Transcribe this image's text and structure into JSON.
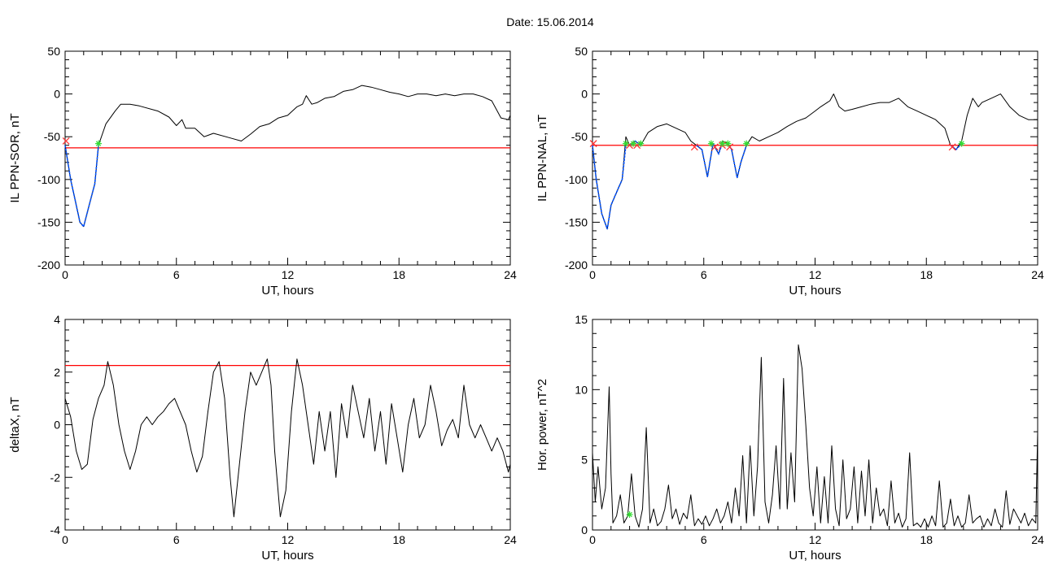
{
  "page": {
    "title": "Date:  15.06.2014"
  },
  "colors": {
    "axis": "#000000",
    "trace": "#000000",
    "threshold": "#ff0000",
    "event": "#0050ff",
    "start_marker": "#33dd33",
    "end_marker": "#ff3333"
  },
  "chart_data": [
    {
      "id": "sor",
      "type": "line",
      "title": "",
      "xlabel": "UT, hours",
      "ylabel": "IL PPN-SOR, nT",
      "xlim": [
        0,
        24
      ],
      "ylim": [
        -200,
        50
      ],
      "xticks": [
        0,
        6,
        12,
        18,
        24
      ],
      "yticks": [
        -200,
        -150,
        -100,
        -50,
        0,
        50
      ],
      "grid": false,
      "threshold": -63,
      "series": [
        {
          "x": [
            0,
            0.3,
            0.6,
            0.8,
            1.0,
            1.3,
            1.6,
            1.8,
            2.2,
            2.7,
            3.0,
            3.5,
            4.0,
            5.0,
            5.6,
            6.0,
            6.3,
            6.5,
            7.0,
            7.5,
            8.0,
            9.0,
            9.5,
            10.0,
            10.5,
            11.0,
            11.5,
            12.0,
            12.5,
            12.8,
            13.0,
            13.3,
            13.6,
            14.0,
            14.5,
            15.0,
            15.5,
            16.0,
            16.5,
            17.0,
            17.5,
            18.0,
            18.5,
            19.0,
            19.5,
            20.0,
            20.5,
            21.0,
            21.5,
            22.0,
            22.5,
            23.0,
            23.5,
            23.9,
            24.0
          ],
          "y": [
            -60,
            -100,
            -130,
            -150,
            -155,
            -130,
            -105,
            -60,
            -35,
            -20,
            -12,
            -12,
            -14,
            -20,
            -27,
            -37,
            -30,
            -40,
            -40,
            -50,
            -46,
            -52,
            -55,
            -47,
            -38,
            -35,
            -28,
            -25,
            -15,
            -12,
            -2,
            -12,
            -10,
            -5,
            -3,
            3,
            5,
            10,
            8,
            5,
            2,
            0,
            -3,
            0,
            0,
            -2,
            0,
            -2,
            0,
            0,
            -3,
            -8,
            -28,
            -30,
            -25
          ]
        }
      ],
      "events": [
        {
          "x": [
            0,
            0.3,
            0.6,
            0.8,
            1.0,
            1.3,
            1.6,
            1.8
          ],
          "y": [
            -60,
            -100,
            -130,
            -150,
            -155,
            -130,
            -105,
            -60
          ]
        }
      ],
      "start_markers": [
        {
          "x": 1.8,
          "y": -58
        }
      ],
      "end_markers": [
        {
          "x": 0.05,
          "y": -55
        }
      ]
    },
    {
      "id": "nal",
      "type": "line",
      "title": "",
      "xlabel": "UT, hours",
      "ylabel": "IL PPN-NAL, nT",
      "xlim": [
        0,
        24
      ],
      "ylim": [
        -200,
        50
      ],
      "xticks": [
        0,
        6,
        12,
        18,
        24
      ],
      "yticks": [
        -200,
        -150,
        -100,
        -50,
        0,
        50
      ],
      "grid": false,
      "threshold": -60,
      "series": [
        {
          "x": [
            0,
            0.2,
            0.5,
            0.8,
            1.0,
            1.3,
            1.6,
            1.8,
            2.0,
            2.3,
            2.6,
            3.0,
            3.5,
            4.0,
            4.5,
            5.0,
            5.3,
            5.6,
            5.9,
            6.2,
            6.5,
            6.8,
            7.0,
            7.3,
            7.5,
            7.8,
            8.0,
            8.3,
            8.6,
            9.0,
            9.5,
            10.0,
            10.5,
            11.0,
            11.5,
            12.0,
            12.3,
            12.8,
            13.0,
            13.3,
            13.6,
            14.0,
            14.5,
            15.0,
            15.5,
            16.0,
            16.5,
            17.0,
            17.5,
            18.0,
            18.5,
            19.0,
            19.3,
            19.6,
            19.9,
            20.2,
            20.5,
            20.8,
            21.0,
            21.5,
            22.0,
            22.5,
            23.0,
            23.5,
            24.0
          ],
          "y": [
            -60,
            -100,
            -140,
            -158,
            -130,
            -115,
            -100,
            -50,
            -60,
            -55,
            -60,
            -45,
            -38,
            -35,
            -40,
            -45,
            -55,
            -60,
            -65,
            -97,
            -58,
            -70,
            -55,
            -58,
            -65,
            -98,
            -80,
            -60,
            -50,
            -55,
            -50,
            -45,
            -38,
            -32,
            -28,
            -20,
            -15,
            -8,
            0,
            -15,
            -20,
            -18,
            -15,
            -12,
            -10,
            -10,
            -5,
            -15,
            -20,
            -25,
            -30,
            -40,
            -60,
            -65,
            -55,
            -25,
            -5,
            -15,
            -10,
            -5,
            0,
            -15,
            -25,
            -30,
            -30
          ]
        }
      ],
      "events": [
        {
          "x": [
            0,
            0.2,
            0.5,
            0.8,
            1.0,
            1.3,
            1.6,
            1.8
          ],
          "y": [
            -60,
            -100,
            -140,
            -158,
            -130,
            -115,
            -100,
            -60
          ]
        },
        {
          "x": [
            2.0,
            2.3,
            2.6
          ],
          "y": [
            -60,
            -55,
            -60
          ]
        },
        {
          "x": [
            5.6,
            5.9,
            6.2,
            6.5
          ],
          "y": [
            -60,
            -65,
            -97,
            -58
          ]
        },
        {
          "x": [
            6.5,
            6.8,
            7.0
          ],
          "y": [
            -58,
            -70,
            -58
          ]
        },
        {
          "x": [
            7.3,
            7.5,
            7.8,
            8.0,
            8.3
          ],
          "y": [
            -58,
            -65,
            -98,
            -80,
            -60
          ]
        },
        {
          "x": [
            19.3,
            19.6,
            19.9
          ],
          "y": [
            -60,
            -65,
            -58
          ]
        }
      ],
      "start_markers": [
        {
          "x": 1.8,
          "y": -58
        },
        {
          "x": 2.2,
          "y": -58
        },
        {
          "x": 2.6,
          "y": -58
        },
        {
          "x": 6.4,
          "y": -58
        },
        {
          "x": 7.0,
          "y": -58
        },
        {
          "x": 7.3,
          "y": -58
        },
        {
          "x": 8.3,
          "y": -58
        },
        {
          "x": 19.9,
          "y": -58
        }
      ],
      "end_markers": [
        {
          "x": 0.05,
          "y": -58
        },
        {
          "x": 2.0,
          "y": -60
        },
        {
          "x": 2.4,
          "y": -60
        },
        {
          "x": 5.5,
          "y": -62
        },
        {
          "x": 6.6,
          "y": -62
        },
        {
          "x": 7.0,
          "y": -60
        },
        {
          "x": 7.4,
          "y": -62
        },
        {
          "x": 19.4,
          "y": -62
        }
      ]
    },
    {
      "id": "deltax",
      "type": "line",
      "title": "",
      "xlabel": "UT, hours",
      "ylabel": "deltaX, nT",
      "xlim": [
        0,
        24
      ],
      "ylim": [
        -4,
        4
      ],
      "xticks": [
        0,
        6,
        12,
        18,
        24
      ],
      "yticks": [
        -4,
        -2,
        0,
        2,
        4
      ],
      "grid": false,
      "threshold": 2.25,
      "series": [
        {
          "x": [
            0,
            0.3,
            0.6,
            0.9,
            1.2,
            1.5,
            1.8,
            2.1,
            2.3,
            2.6,
            2.9,
            3.2,
            3.5,
            3.8,
            4.1,
            4.4,
            4.7,
            5.0,
            5.3,
            5.6,
            5.9,
            6.2,
            6.5,
            6.8,
            7.1,
            7.4,
            7.7,
            8.0,
            8.3,
            8.6,
            8.9,
            9.1,
            9.4,
            9.7,
            10.0,
            10.3,
            10.6,
            10.9,
            11.1,
            11.3,
            11.6,
            11.9,
            12.2,
            12.5,
            12.8,
            13.1,
            13.4,
            13.7,
            14.0,
            14.3,
            14.6,
            14.9,
            15.2,
            15.5,
            15.8,
            16.1,
            16.4,
            16.7,
            17.0,
            17.3,
            17.6,
            17.9,
            18.2,
            18.5,
            18.8,
            19.1,
            19.4,
            19.7,
            20.0,
            20.3,
            20.6,
            20.9,
            21.2,
            21.5,
            21.8,
            22.1,
            22.4,
            22.7,
            23.0,
            23.3,
            23.6,
            23.9,
            24.0
          ],
          "y": [
            1.0,
            0.3,
            -1.0,
            -1.7,
            -1.5,
            0.2,
            1.0,
            1.5,
            2.4,
            1.5,
            0.0,
            -1.0,
            -1.7,
            -1.0,
            0.0,
            0.3,
            0.0,
            0.3,
            0.5,
            0.8,
            1.0,
            0.5,
            0.0,
            -1.0,
            -1.8,
            -1.2,
            0.5,
            2.0,
            2.4,
            1.0,
            -2.0,
            -3.5,
            -1.5,
            0.5,
            2.0,
            1.5,
            2.0,
            2.5,
            1.5,
            -1.0,
            -3.5,
            -2.5,
            0.5,
            2.5,
            1.5,
            0.0,
            -1.5,
            0.5,
            -1.0,
            0.5,
            -2.0,
            0.8,
            -0.5,
            1.5,
            0.5,
            -0.5,
            1.0,
            -1.0,
            0.5,
            -1.5,
            0.8,
            -0.5,
            -1.8,
            0.0,
            1.0,
            -0.5,
            0.0,
            1.5,
            0.5,
            -0.8,
            -0.2,
            0.2,
            -0.5,
            1.5,
            0.0,
            -0.5,
            0.0,
            -0.5,
            -1.0,
            -0.5,
            -1.0,
            -1.8,
            -1.5
          ]
        }
      ]
    },
    {
      "id": "power",
      "type": "line",
      "title": "",
      "xlabel": "UT, hours",
      "ylabel": "Hor. power, nT^2",
      "xlim": [
        0,
        24
      ],
      "ylim": [
        0,
        15
      ],
      "xticks": [
        0,
        6,
        12,
        18,
        24
      ],
      "yticks": [
        0,
        5,
        10,
        15
      ],
      "grid": false,
      "series": [
        {
          "x": [
            0,
            0.15,
            0.3,
            0.5,
            0.7,
            0.9,
            1.0,
            1.1,
            1.3,
            1.5,
            1.7,
            1.9,
            2.1,
            2.3,
            2.5,
            2.7,
            2.9,
            3.1,
            3.3,
            3.5,
            3.7,
            3.9,
            4.1,
            4.3,
            4.5,
            4.7,
            4.9,
            5.1,
            5.3,
            5.5,
            5.7,
            5.9,
            6.1,
            6.3,
            6.5,
            6.7,
            6.9,
            7.1,
            7.3,
            7.5,
            7.7,
            7.9,
            8.1,
            8.3,
            8.5,
            8.7,
            8.9,
            9.1,
            9.3,
            9.5,
            9.7,
            9.9,
            10.1,
            10.3,
            10.5,
            10.7,
            10.9,
            11.1,
            11.3,
            11.5,
            11.7,
            11.9,
            12.1,
            12.3,
            12.5,
            12.7,
            12.9,
            13.1,
            13.3,
            13.5,
            13.7,
            13.9,
            14.1,
            14.3,
            14.5,
            14.7,
            14.9,
            15.1,
            15.3,
            15.5,
            15.7,
            15.9,
            16.1,
            16.3,
            16.5,
            16.7,
            16.9,
            17.1,
            17.3,
            17.5,
            17.7,
            17.9,
            18.1,
            18.3,
            18.5,
            18.7,
            18.9,
            19.1,
            19.3,
            19.5,
            19.7,
            19.9,
            20.1,
            20.3,
            20.5,
            20.7,
            20.9,
            21.1,
            21.3,
            21.5,
            21.7,
            21.9,
            22.1,
            22.3,
            22.5,
            22.7,
            22.9,
            23.1,
            23.3,
            23.5,
            23.7,
            23.9,
            24.0
          ],
          "y": [
            5.5,
            2.0,
            4.5,
            1.5,
            3.0,
            10.2,
            4.0,
            0.5,
            1.0,
            2.5,
            0.5,
            1.0,
            4.0,
            1.0,
            0.2,
            1.5,
            7.3,
            0.5,
            1.5,
            0.3,
            0.6,
            1.5,
            3.2,
            0.8,
            1.5,
            0.4,
            1.2,
            0.8,
            2.5,
            0.3,
            0.8,
            0.4,
            1.0,
            0.3,
            0.8,
            1.5,
            0.5,
            1.0,
            2.0,
            0.5,
            3.0,
            1.0,
            5.3,
            0.5,
            6.0,
            1.0,
            4.5,
            12.3,
            2.0,
            0.5,
            2.5,
            6.0,
            1.5,
            10.8,
            1.5,
            5.5,
            2.0,
            13.2,
            11.5,
            7.5,
            3.0,
            1.0,
            4.5,
            0.5,
            3.8,
            0.5,
            6.0,
            1.5,
            0.3,
            5.0,
            0.8,
            1.5,
            4.5,
            0.5,
            4.2,
            1.0,
            5.0,
            0.5,
            3.0,
            1.0,
            1.5,
            0.3,
            3.5,
            0.5,
            1.2,
            0.2,
            0.8,
            5.5,
            0.3,
            0.5,
            0.2,
            0.8,
            0.2,
            1.0,
            0.3,
            3.5,
            0.2,
            0.5,
            2.2,
            0.3,
            1.0,
            0.2,
            0.5,
            2.5,
            0.5,
            0.8,
            1.0,
            0.2,
            0.8,
            0.3,
            1.5,
            0.5,
            0.2,
            2.8,
            0.4,
            1.5,
            1.0,
            0.5,
            1.2,
            0.3,
            0.8,
            0.5,
            7.0
          ]
        }
      ],
      "start_markers": [
        {
          "x": 2.0,
          "y": 1.1
        }
      ]
    }
  ]
}
